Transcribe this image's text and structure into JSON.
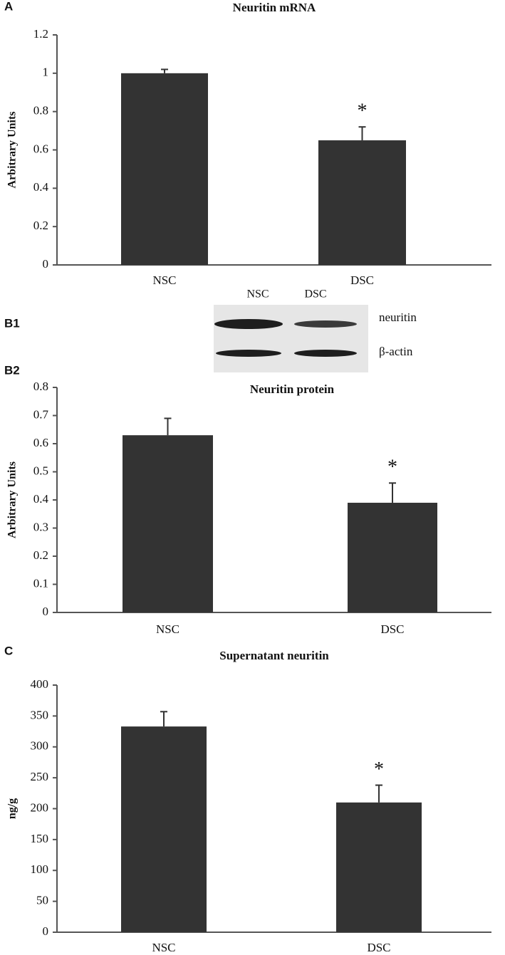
{
  "chart_data": [
    {
      "type": "bar",
      "panel_label": "A",
      "title": "Neuritin mRNA",
      "y_label": "Arbitrary Units",
      "categories": [
        "NSC",
        "DSC"
      ],
      "values": [
        1.0,
        0.65
      ],
      "errors": [
        0.02,
        0.07
      ],
      "significance": [
        null,
        "*"
      ],
      "color": "#333333",
      "ylim": [
        0,
        1.2
      ],
      "yticks": [
        0,
        0.2,
        0.4,
        0.6,
        0.8,
        1,
        1.2
      ]
    },
    {
      "type": "bar",
      "panel_label": "B2",
      "title": "Neuritin protein",
      "y_label": "Arbitrary Units",
      "categories": [
        "NSC",
        "DSC"
      ],
      "values": [
        0.63,
        0.39
      ],
      "errors": [
        0.06,
        0.07
      ],
      "significance": [
        null,
        "*"
      ],
      "color": "#333333",
      "ylim": [
        0,
        0.8
      ],
      "yticks": [
        0,
        0.1,
        0.2,
        0.3,
        0.4,
        0.5,
        0.6,
        0.7,
        0.8
      ]
    },
    {
      "type": "bar",
      "panel_label": "C",
      "title": "Supernatant neuritin",
      "y_label": "ng/g",
      "categories": [
        "NSC",
        "DSC"
      ],
      "values": [
        333,
        210
      ],
      "errors": [
        24,
        28
      ],
      "significance": [
        null,
        "*"
      ],
      "color": "#333333",
      "ylim": [
        0,
        400
      ],
      "yticks": [
        0,
        50,
        100,
        150,
        200,
        250,
        300,
        350,
        400
      ]
    }
  ],
  "blot": {
    "panel_label": "B1",
    "lanes": [
      "NSC",
      "DSC"
    ],
    "bands": [
      "neuritin",
      "β-actin"
    ]
  }
}
